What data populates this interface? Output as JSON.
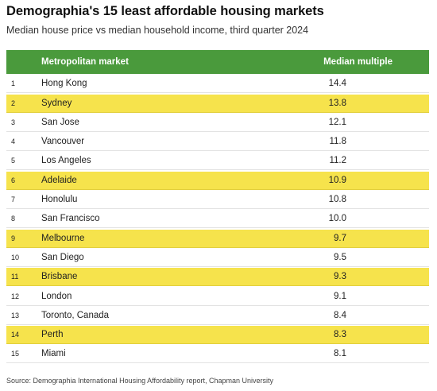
{
  "title": "Demographia's 15 least affordable housing markets",
  "subtitle": "Median house price vs median household income, third quarter 2024",
  "colors": {
    "header_bg": "#4a9a3c",
    "highlight": "#f6e34c"
  },
  "chart_data": {
    "type": "table",
    "columns": [
      "",
      "Metropolitan market",
      "Median multiple"
    ],
    "rows": [
      {
        "rank": "1",
        "market": "Hong Kong",
        "multiple": "14.4",
        "highlight": false
      },
      {
        "rank": "2",
        "market": "Sydney",
        "multiple": "13.8",
        "highlight": true
      },
      {
        "rank": "3",
        "market": "San Jose",
        "multiple": "12.1",
        "highlight": false
      },
      {
        "rank": "4",
        "market": "Vancouver",
        "multiple": "11.8",
        "highlight": false
      },
      {
        "rank": "5",
        "market": "Los Angeles",
        "multiple": "11.2",
        "highlight": false
      },
      {
        "rank": "6",
        "market": "Adelaide",
        "multiple": "10.9",
        "highlight": true
      },
      {
        "rank": "7",
        "market": "Honolulu",
        "multiple": "10.8",
        "highlight": false
      },
      {
        "rank": "8",
        "market": "San Francisco",
        "multiple": "10.0",
        "highlight": false
      },
      {
        "rank": "9",
        "market": "Melbourne",
        "multiple": "9.7",
        "highlight": true
      },
      {
        "rank": "10",
        "market": "San Diego",
        "multiple": "9.5",
        "highlight": false
      },
      {
        "rank": "11",
        "market": "Brisbane",
        "multiple": "9.3",
        "highlight": true
      },
      {
        "rank": "12",
        "market": "London",
        "multiple": "9.1",
        "highlight": false
      },
      {
        "rank": "13",
        "market": "Toronto, Canada",
        "multiple": "8.4",
        "highlight": false
      },
      {
        "rank": "14",
        "market": "Perth",
        "multiple": "8.3",
        "highlight": true
      },
      {
        "rank": "15",
        "market": "Miami",
        "multiple": "8.1",
        "highlight": false
      }
    ]
  },
  "source": "Source: Demographia International Housing Affordability report, Chapman University"
}
